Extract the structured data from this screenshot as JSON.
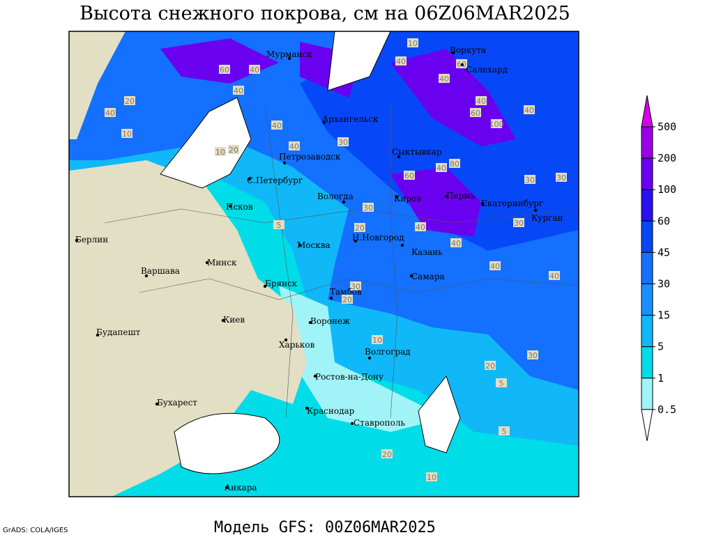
{
  "map": {
    "title": "Высота снежного покрова, см на 06Z06MAR2025",
    "footer": "Модель GFS: 00Z06MAR2025",
    "credit": "GrADS: COLA/IGES",
    "cities": [
      "Мурманск",
      "Воркута",
      "Салехард",
      "Архангельск",
      "Сыктывкар",
      "Петрозаводск",
      "С.Петербург",
      "Вологда",
      "Киров",
      "Пермь",
      "Екатеринбург",
      "Курган",
      "Псков",
      "Берлин",
      "Н.Новгород",
      "Москва",
      "Казань",
      "Минск",
      "Варшава",
      "Самара",
      "Брянск",
      "Тамбов",
      "Воронеж",
      "Киев",
      "Харьков",
      "Волгоград",
      "Будапешт",
      "Ростов-на-Дону",
      "Бухарест",
      "Краснодар",
      "Ставрополь",
      "Анкара"
    ],
    "contour_labels": [
      10,
      40,
      60,
      40,
      40,
      20,
      40,
      60,
      40,
      10,
      40,
      10,
      20,
      30,
      40,
      60,
      40,
      60,
      100,
      80,
      40,
      40,
      30,
      30,
      5,
      20,
      30,
      40,
      40,
      40,
      30,
      20,
      40,
      30,
      10,
      20,
      5,
      5,
      30,
      10,
      20
    ],
    "legend": {
      "levels": [
        500,
        200,
        100,
        60,
        45,
        30,
        15,
        5,
        1,
        0.5
      ],
      "colors": [
        "#d800f0",
        "#9a00e8",
        "#6a00f0",
        "#2a10f0",
        "#0648f8",
        "#1470ff",
        "#1a90ff",
        "#10b8f8",
        "#00dce8",
        "#a0f4f8",
        "#ffffff"
      ]
    }
  }
}
